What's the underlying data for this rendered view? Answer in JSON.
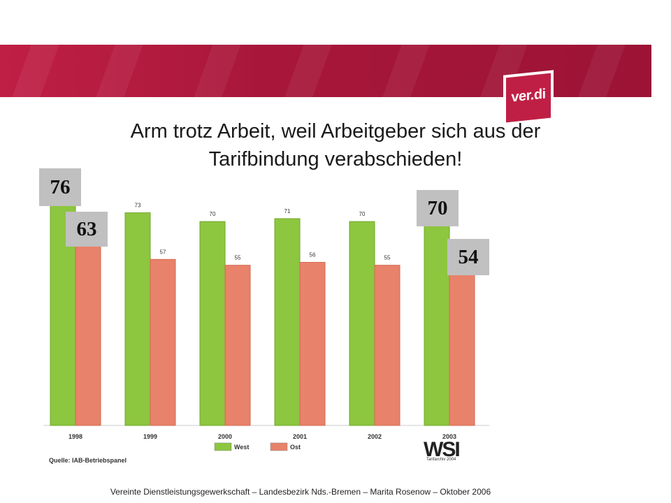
{
  "header": {
    "title": "Arm trotz Arbeit, weil Arbeitgeber sich aus der\nTarifbindung verabschieden!",
    "logo_text": "ver.di",
    "banner_color": "#a8173a"
  },
  "chart_data": {
    "type": "bar",
    "categories": [
      "1998",
      "1999",
      "2000",
      "2001",
      "2002",
      "2003"
    ],
    "series": [
      {
        "name": "West",
        "color": "#8dc63f",
        "values": [
          76,
          73,
          70,
          71,
          70,
          70
        ]
      },
      {
        "name": "Ost",
        "color": "#e8826a",
        "values": [
          63,
          57,
          55,
          56,
          55,
          54
        ]
      }
    ],
    "ylim": [
      0,
      100
    ],
    "grid": false,
    "legend": "bottom-center",
    "highlight_labels": {
      "first": {
        "West": "76",
        "Ost": "63"
      },
      "last": {
        "West": "70",
        "Ost": "54"
      }
    },
    "source": "Quelle: IAB-Betriebspanel"
  },
  "branding": {
    "wsi_logo": "WSI",
    "wsi_sub": "Tarifarchiv 2004"
  },
  "footer": {
    "text": "Vereinte Dienstleistungsgewerkschaft – Landesbezirk Nds.-Bremen – Marita Rosenow – Oktober 2006"
  }
}
